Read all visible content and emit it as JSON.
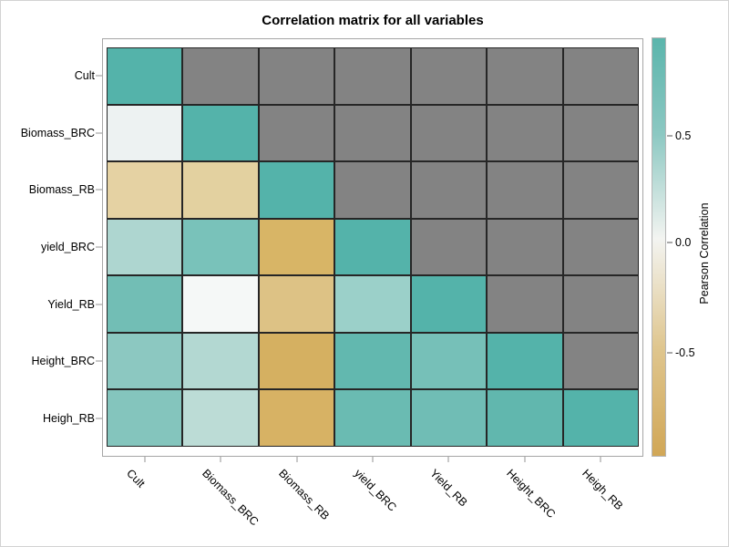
{
  "chart_data": {
    "type": "heatmap",
    "title": "Correlation matrix for all variables",
    "x_categories": [
      "Cult",
      "Biomass_BRC",
      "Biomass_RB",
      "yield_BRC",
      "Yield_RB",
      "Height_BRC",
      "Heigh_RB"
    ],
    "y_categories": [
      "Cult",
      "Biomass_BRC",
      "Biomass_RB",
      "yield_BRC",
      "Yield_RB",
      "Height_BRC",
      "Heigh_RB"
    ],
    "legend_position": "right",
    "masked_upper_triangle": true,
    "masked_color": "#838383",
    "diagonal_color": "#54b3aa",
    "cell_colors": [
      [
        "#54b3aa",
        null,
        null,
        null,
        null,
        null,
        null
      ],
      [
        "#edf2f2",
        "#54b3aa",
        null,
        null,
        null,
        null,
        null
      ],
      [
        "#e5d2a3",
        "#e3d1a0",
        "#54b3aa",
        null,
        null,
        null,
        null
      ],
      [
        "#aed6d0",
        "#79c2ba",
        "#d8b566",
        "#54b3aa",
        null,
        null,
        null
      ],
      [
        "#72beb5",
        "#f5f8f7",
        "#ddc285",
        "#9bd0c9",
        "#54b3aa",
        null,
        null
      ],
      [
        "#8cc8c1",
        "#b3d8d2",
        "#d5b061",
        "#62b8af",
        "#76c0b8",
        "#54b3aa",
        null
      ],
      [
        "#84c5bd",
        "#bcdcd6",
        "#d7b264",
        "#6abbb2",
        "#70bdb5",
        "#61b7ae",
        "#54b3aa"
      ]
    ],
    "values_estimated_from_colorbar": [
      [
        1.0,
        null,
        null,
        null,
        null,
        null,
        null
      ],
      [
        0.05,
        1.0,
        null,
        null,
        null,
        null,
        null
      ],
      [
        -0.45,
        -0.47,
        1.0,
        null,
        null,
        null,
        null
      ],
      [
        0.35,
        0.65,
        -0.85,
        1.0,
        null,
        null,
        null
      ],
      [
        0.7,
        0.0,
        -0.68,
        0.42,
        1.0,
        null,
        null
      ],
      [
        0.55,
        0.3,
        -0.88,
        0.82,
        0.65,
        1.0,
        null
      ],
      [
        0.6,
        0.28,
        -0.87,
        0.75,
        0.7,
        0.83,
        1.0
      ]
    ],
    "colorbar": {
      "label": "Pearson Correlation",
      "ticks": [
        {
          "label": "0.5",
          "value": 0.5,
          "pct": 23.5
        },
        {
          "label": "0.0",
          "value": 0.0,
          "pct": 48.9
        },
        {
          "label": "-0.5",
          "value": -0.5,
          "pct": 75.2
        }
      ],
      "gradient_stops": [
        {
          "color": "#5bb5ac",
          "pct": 0
        },
        {
          "color": "#8cc8c2",
          "pct": 23
        },
        {
          "color": "#f3f4f1",
          "pct": 48
        },
        {
          "color": "#dfc68f",
          "pct": 74
        },
        {
          "color": "#d1a757",
          "pct": 100
        }
      ]
    }
  }
}
